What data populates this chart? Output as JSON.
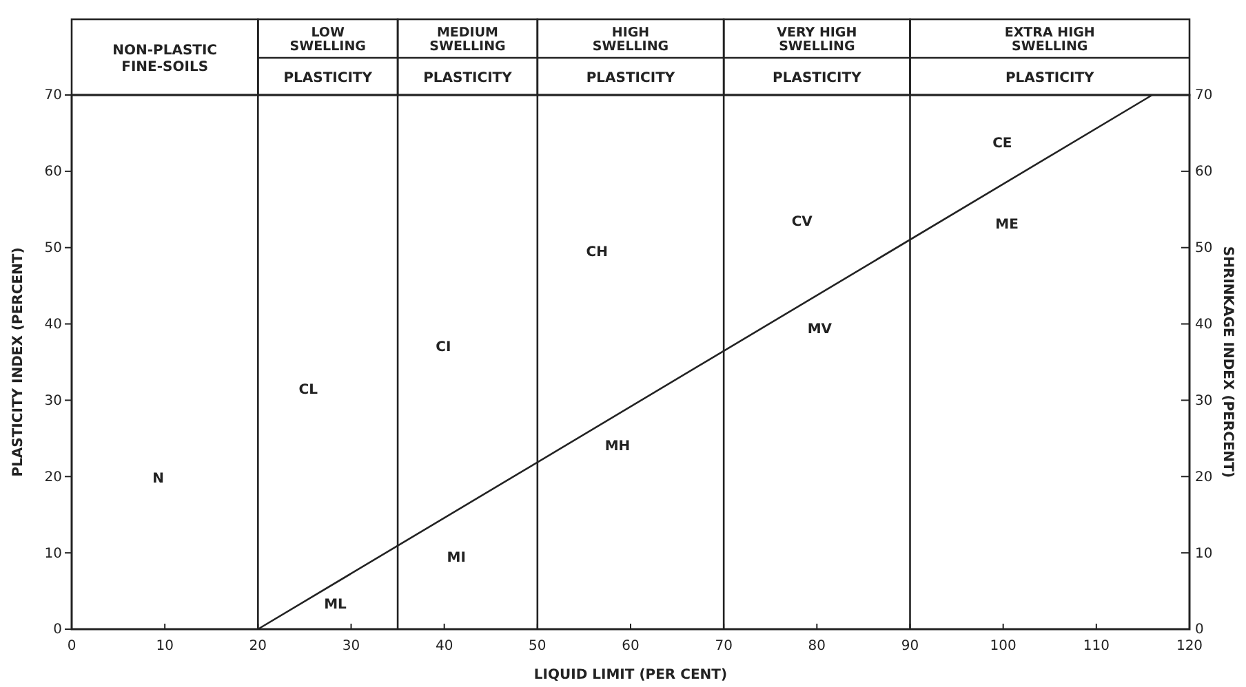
{
  "chart_data": {
    "type": "line",
    "xlabel": "LIQUID LIMIT (PER CENT)",
    "ylabel": "PLASTICITY INDEX (PERCENT)",
    "y2label": "SHRINKAGE INDEX (PERCENT)",
    "xlim": [
      0,
      120
    ],
    "xticks": [
      0,
      10,
      20,
      30,
      40,
      50,
      60,
      70,
      80,
      90,
      100,
      110,
      120
    ],
    "ylim": [
      0,
      70
    ],
    "yticks": [
      0,
      10,
      20,
      30,
      40,
      50,
      60,
      70
    ],
    "y2lim": [
      0,
      70
    ],
    "y2ticks": [
      0,
      10,
      20,
      30,
      40,
      50,
      60,
      70
    ],
    "grid": false,
    "marker": "none",
    "line_style": "solid",
    "series": [
      {
        "color": "#222222",
        "x": [
          20,
          116
        ],
        "values": [
          0,
          70
        ]
      }
    ],
    "ref_lines": [
      {
        "axis": "x",
        "value": 20,
        "label": null
      },
      {
        "axis": "x",
        "value": 35,
        "label": null
      },
      {
        "axis": "x",
        "value": 50,
        "label": null
      },
      {
        "axis": "x",
        "value": 70,
        "label": null
      },
      {
        "axis": "x",
        "value": 90,
        "label": null
      }
    ],
    "annotations": [
      "NON-PLASTIC FINE-SOILS",
      "LOW SWELLING\nPLASTICITY",
      "MEDIUM SWELLING\nPLASTICITY",
      "HIGH SWELLING\nPLASTICITY",
      "VERY HIGH SWELLING\nPLASTICITY",
      "EXTRA HIGH SWELLING\nPLASTICITY",
      "N",
      "CL",
      "ML",
      "CI",
      "MI",
      "CH",
      "MH",
      "CV",
      "MV",
      "CE",
      "ME"
    ]
  }
}
